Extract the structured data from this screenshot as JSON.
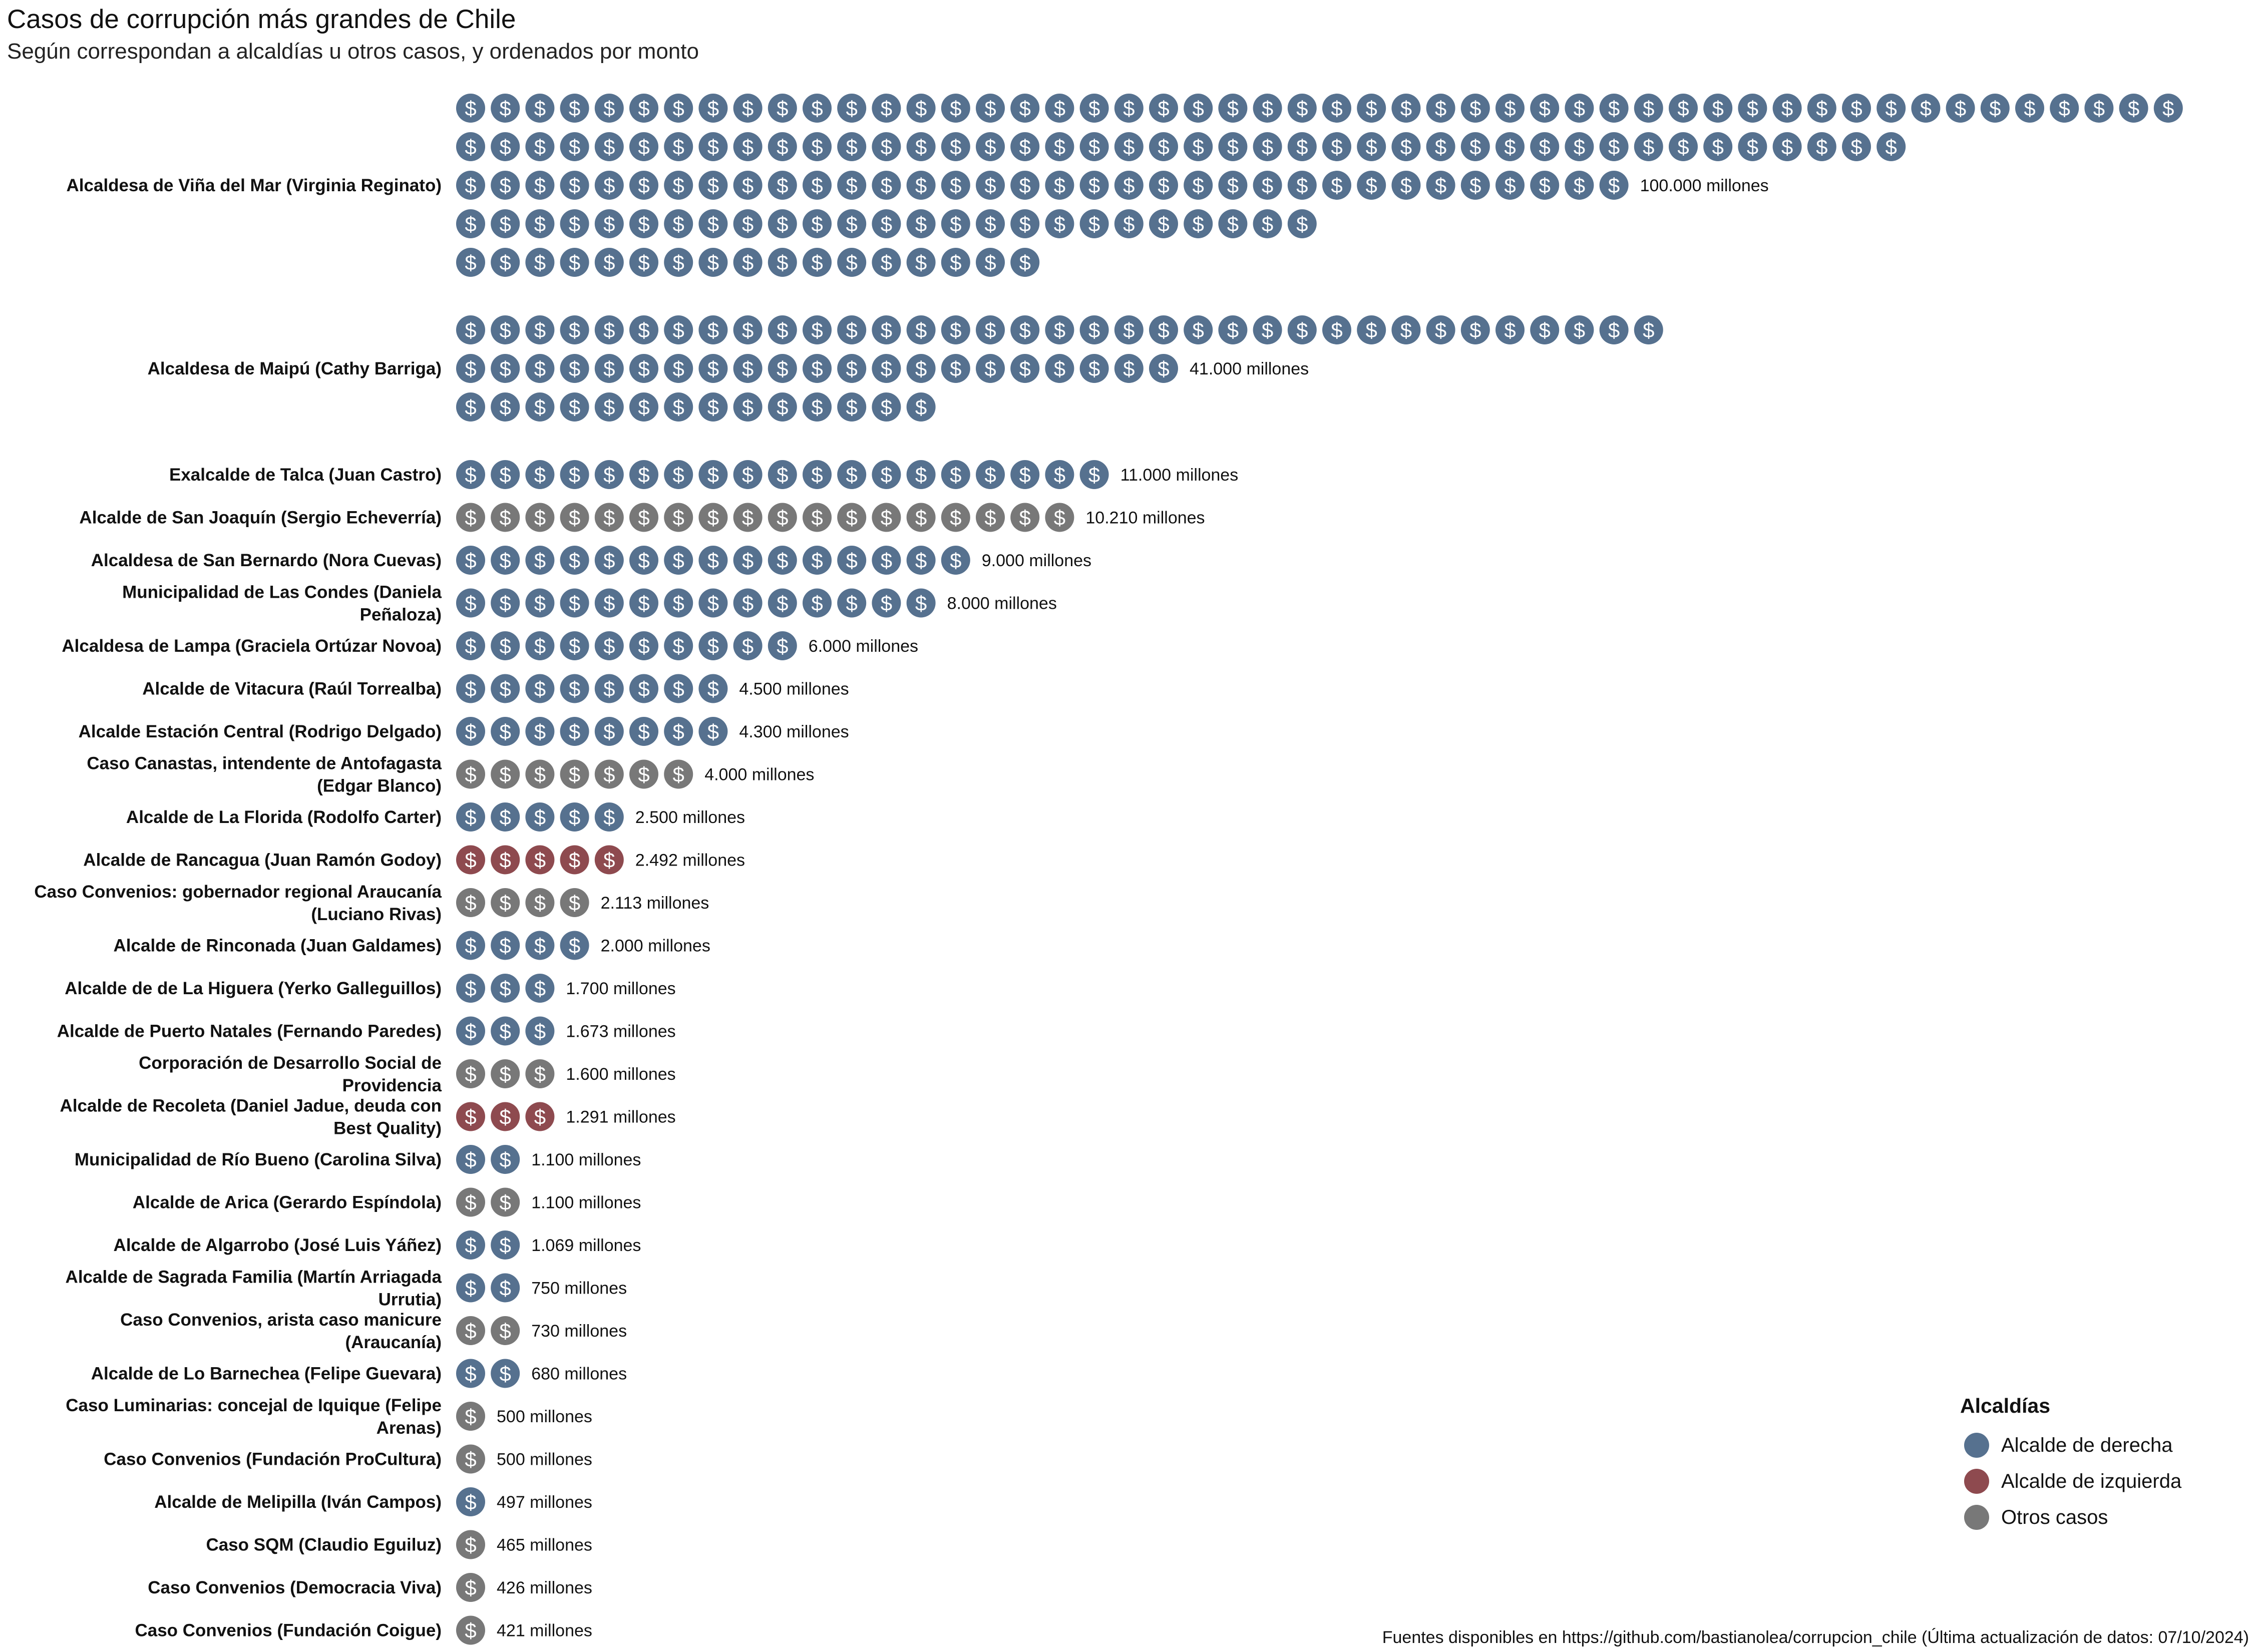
{
  "chart_data": {
    "type": "pictogram",
    "title": "Casos de corrupción más grandes de Chile",
    "subtitle": "Según correspondan a alcaldías u otros casos, y ordenados por monto",
    "caption": "Fuentes disponibles en https://github.com/bastianolea/corrupcion_chile (Última actualización de datos: 07/10/2024)",
    "icon": "dollar-sign",
    "legend": {
      "title": "Alcaldías",
      "position": "right",
      "items": [
        {
          "key": "derecha",
          "label": "Alcalde de derecha",
          "color": "#56718f"
        },
        {
          "key": "izquierda",
          "label": "Alcalde de izquierda",
          "color": "#8e4a4f"
        },
        {
          "key": "otros",
          "label": "Otros casos",
          "color": "#787878"
        }
      ]
    },
    "cases": [
      {
        "label": "Alcaldesa de Viña del Mar (Virginia Reginato)",
        "rows": [
          50,
          42,
          34,
          25,
          17
        ],
        "value_label": "100.000 millones",
        "group": "derecha"
      },
      {
        "label": "Alcaldesa de Maipú (Cathy Barriga)",
        "rows": [
          35,
          21,
          14
        ],
        "value_label": "41.000 millones",
        "group": "derecha"
      },
      {
        "label": "Exalcalde de Talca (Juan Castro)",
        "rows": [
          19
        ],
        "value_label": "11.000 millones",
        "group": "derecha"
      },
      {
        "label": "Alcalde de San Joaquín (Sergio Echeverría)",
        "rows": [
          18
        ],
        "value_label": "10.210 millones",
        "group": "otros"
      },
      {
        "label": "Alcaldesa de San Bernardo (Nora Cuevas)",
        "rows": [
          15
        ],
        "value_label": "9.000 millones",
        "group": "derecha"
      },
      {
        "label": "Municipalidad de Las Condes (Daniela Peñaloza)",
        "label_lines": [
          "Municipalidad de Las Condes (Daniela",
          "Peñaloza)"
        ],
        "rows": [
          14
        ],
        "value_label": "8.000 millones",
        "group": "derecha"
      },
      {
        "label": "Alcaldesa de Lampa (Graciela Ortúzar Novoa)",
        "rows": [
          10
        ],
        "value_label": "6.000 millones",
        "group": "derecha"
      },
      {
        "label": "Alcalde de Vitacura (Raúl Torrealba)",
        "rows": [
          8
        ],
        "value_label": "4.500 millones",
        "group": "derecha"
      },
      {
        "label": "Alcalde Estación Central (Rodrigo Delgado)",
        "rows": [
          8
        ],
        "value_label": "4.300 millones",
        "group": "derecha"
      },
      {
        "label": "Caso Canastas, intendente de Antofagasta (Edgar Blanco)",
        "label_lines": [
          "Caso Canastas, intendente de Antofagasta",
          "(Edgar Blanco)"
        ],
        "rows": [
          7
        ],
        "value_label": "4.000 millones",
        "group": "otros"
      },
      {
        "label": "Alcalde de La Florida (Rodolfo Carter)",
        "rows": [
          5
        ],
        "value_label": "2.500 millones",
        "group": "derecha"
      },
      {
        "label": "Alcalde de Rancagua (Juan Ramón Godoy)",
        "rows": [
          5
        ],
        "value_label": "2.492 millones",
        "group": "izquierda"
      },
      {
        "label": "Caso Convenios: gobernador regional Araucanía (Luciano Rivas)",
        "label_lines": [
          "Caso Convenios: gobernador regional Araucanía",
          "(Luciano Rivas)"
        ],
        "rows": [
          4
        ],
        "value_label": "2.113 millones",
        "group": "otros"
      },
      {
        "label": "Alcalde de Rinconada (Juan Galdames)",
        "rows": [
          4
        ],
        "value_label": "2.000 millones",
        "group": "derecha"
      },
      {
        "label": "Alcalde de de La Higuera (Yerko Galleguillos)",
        "rows": [
          3
        ],
        "value_label": "1.700 millones",
        "group": "derecha"
      },
      {
        "label": "Alcalde de Puerto Natales (Fernando Paredes)",
        "rows": [
          3
        ],
        "value_label": "1.673 millones",
        "group": "derecha"
      },
      {
        "label": "Corporación de Desarrollo Social de Providencia",
        "label_lines": [
          "Corporación de Desarrollo Social de",
          "Providencia"
        ],
        "rows": [
          3
        ],
        "value_label": "1.600 millones",
        "group": "otros"
      },
      {
        "label": "Alcalde de Recoleta (Daniel Jadue, deuda con Best Quality)",
        "label_lines": [
          "Alcalde de Recoleta (Daniel Jadue, deuda con",
          "Best Quality)"
        ],
        "rows": [
          3
        ],
        "value_label": "1.291 millones",
        "group": "izquierda"
      },
      {
        "label": "Municipalidad de Río Bueno (Carolina Silva)",
        "rows": [
          2
        ],
        "value_label": "1.100 millones",
        "group": "derecha"
      },
      {
        "label": "Alcalde de Arica (Gerardo Espíndola)",
        "rows": [
          2
        ],
        "value_label": "1.100 millones",
        "group": "otros"
      },
      {
        "label": "Alcalde de Algarrobo (José Luis Yáñez)",
        "rows": [
          2
        ],
        "value_label": "1.069 millones",
        "group": "derecha"
      },
      {
        "label": "Alcalde de Sagrada Familia (Martín Arriagada Urrutia)",
        "label_lines": [
          "Alcalde de Sagrada Familia (Martín Arriagada",
          "Urrutia)"
        ],
        "rows": [
          2
        ],
        "value_label": "750 millones",
        "group": "derecha"
      },
      {
        "label": "Caso Convenios, arista caso manicure (Araucanía)",
        "label_lines": [
          "Caso Convenios, arista caso manicure",
          "(Araucanía)"
        ],
        "rows": [
          2
        ],
        "value_label": "730 millones",
        "group": "otros"
      },
      {
        "label": "Alcalde de Lo Barnechea (Felipe Guevara)",
        "rows": [
          2
        ],
        "value_label": "680 millones",
        "group": "derecha"
      },
      {
        "label": "Caso Luminarias: concejal de Iquique (Felipe Arenas)",
        "label_lines": [
          "Caso Luminarias: concejal de Iquique (Felipe",
          "Arenas)"
        ],
        "rows": [
          1
        ],
        "value_label": "500 millones",
        "group": "otros"
      },
      {
        "label": "Caso Convenios (Fundación ProCultura)",
        "rows": [
          1
        ],
        "value_label": "500 millones",
        "group": "otros"
      },
      {
        "label": "Alcalde de Melipilla (Iván Campos)",
        "rows": [
          1
        ],
        "value_label": "497 millones",
        "group": "derecha"
      },
      {
        "label": "Caso SQM (Claudio Eguiluz)",
        "rows": [
          1
        ],
        "value_label": "465 millones",
        "group": "otros"
      },
      {
        "label": "Caso Convenios (Democracia Viva)",
        "rows": [
          1
        ],
        "value_label": "426 millones",
        "group": "otros"
      },
      {
        "label": "Caso Convenios (Fundación Coigue)",
        "rows": [
          1
        ],
        "value_label": "421 millones",
        "group": "otros"
      }
    ]
  }
}
